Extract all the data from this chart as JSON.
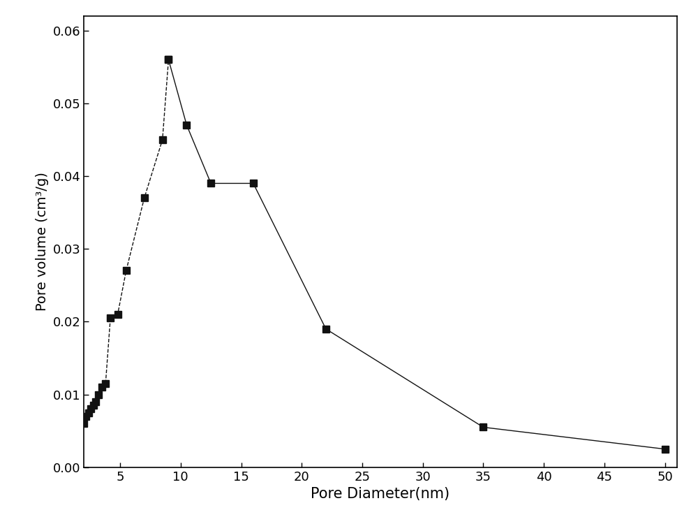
{
  "x": [
    2.0,
    2.2,
    2.4,
    2.6,
    2.8,
    3.0,
    3.2,
    3.5,
    3.8,
    4.2,
    4.8,
    5.5,
    7.0,
    8.5,
    9.0,
    10.5,
    12.5,
    16.0,
    22.0,
    35.0,
    50.0
  ],
  "y": [
    0.006,
    0.007,
    0.0075,
    0.008,
    0.0085,
    0.009,
    0.01,
    0.011,
    0.0115,
    0.0205,
    0.021,
    0.027,
    0.037,
    0.045,
    0.056,
    0.047,
    0.039,
    0.039,
    0.019,
    0.0055,
    0.0025
  ],
  "x_dashed": [
    2.0,
    2.2,
    2.4,
    2.6,
    2.8,
    3.0,
    3.2,
    3.5,
    3.8,
    4.2,
    4.8,
    5.5,
    7.0,
    8.5,
    9.0
  ],
  "y_dashed": [
    0.006,
    0.007,
    0.0075,
    0.008,
    0.0085,
    0.009,
    0.01,
    0.011,
    0.0115,
    0.0205,
    0.021,
    0.027,
    0.037,
    0.045,
    0.056
  ],
  "x_solid": [
    9.0,
    10.5,
    12.5,
    16.0,
    22.0,
    35.0,
    50.0
  ],
  "y_solid": [
    0.056,
    0.047,
    0.039,
    0.039,
    0.019,
    0.0055,
    0.0025
  ],
  "xlabel": "Pore Diameter(nm)",
  "ylabel": "Pore volume (cm³/g)",
  "xlim": [
    2.0,
    51.0
  ],
  "ylim": [
    0.0,
    0.062
  ],
  "xticks": [
    5,
    10,
    15,
    20,
    25,
    30,
    35,
    40,
    45,
    50
  ],
  "yticks": [
    0.0,
    0.01,
    0.02,
    0.03,
    0.04,
    0.05,
    0.06
  ],
  "marker": "s",
  "marker_size": 7,
  "line_color": "#111111",
  "marker_color": "#111111",
  "line_width": 1.0,
  "xlabel_fontsize": 15,
  "ylabel_fontsize": 14,
  "tick_fontsize": 13,
  "figure_bg": "#ffffff",
  "axes_bg": "#ffffff"
}
